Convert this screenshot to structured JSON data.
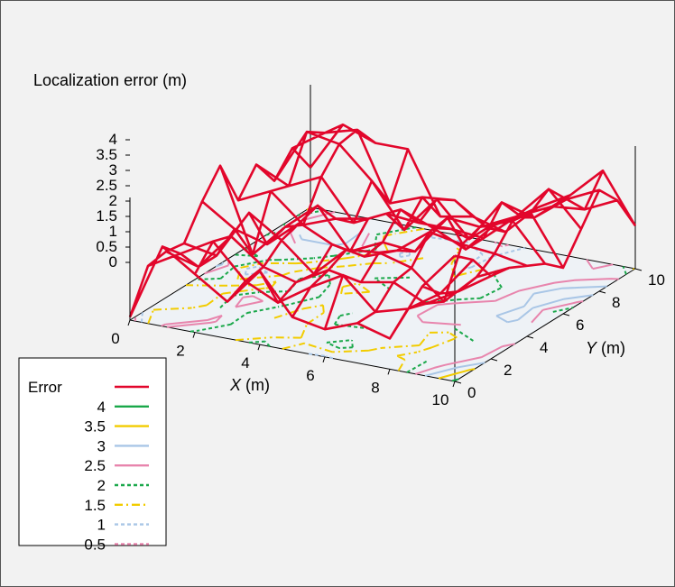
{
  "chart_data": {
    "type": "surface-3d",
    "title": "Localization error (m)",
    "xlabel_italic": "X",
    "xlabel_unit": " (m)",
    "ylabel_italic": "Y",
    "ylabel_unit": " (m)",
    "x_ticks": [
      "0",
      "2",
      "4",
      "6",
      "8",
      "10"
    ],
    "y_ticks": [
      "0",
      "2",
      "4",
      "6",
      "8",
      "10"
    ],
    "z_ticks": [
      "0",
      "0.5",
      "1",
      "1.5",
      "2",
      "2.5",
      "3",
      "3.5",
      "4"
    ],
    "xlim": [
      0,
      10
    ],
    "ylim": [
      0,
      10
    ],
    "zlim": [
      0,
      4
    ],
    "x": [
      0,
      1,
      2,
      3,
      4,
      5,
      6,
      7,
      8,
      9,
      10
    ],
    "y": [
      0,
      1,
      2,
      3,
      4,
      5,
      6,
      7,
      8,
      9,
      10
    ],
    "error_surface": [
      [
        0.1,
        2.6,
        1.9,
        1.2,
        2.4,
        1.1,
        0.9,
        1.3,
        1.0,
        2.9,
        4.1
      ],
      [
        1.4,
        2.0,
        2.6,
        1.5,
        1.0,
        1.7,
        2.3,
        1.3,
        1.6,
        2.3,
        3.6
      ],
      [
        1.5,
        1.2,
        2.4,
        1.6,
        1.3,
        1.9,
        1.7,
        1.9,
        1.4,
        2.0,
        2.7
      ],
      [
        1.4,
        1.2,
        2.8,
        2.1,
        1.2,
        2.2,
        2.3,
        2.0,
        1.1,
        2.1,
        2.6
      ],
      [
        2.4,
        1.7,
        1.4,
        2.3,
        1.8,
        1.6,
        2.0,
        2.8,
        2.6,
        2.5,
        2.3
      ],
      [
        3.2,
        0.5,
        1.6,
        2.5,
        1.2,
        1.7,
        1.6,
        2.9,
        2.8,
        3.2,
        2.0
      ],
      [
        1.7,
        2.2,
        1.3,
        1.7,
        1.9,
        2.4,
        2.0,
        1.5,
        2.6,
        3.1,
        1.5
      ],
      [
        2.5,
        2.0,
        2.5,
        1.2,
        1.7,
        1.6,
        1.6,
        1.5,
        2.4,
        3.5,
        2.4
      ],
      [
        1.6,
        3.4,
        3.2,
        2.2,
        0.8,
        2.0,
        0.9,
        2.3,
        2.0,
        2.8,
        3.3
      ],
      [
        2.3,
        3.0,
        3.3,
        1.1,
        1.5,
        1.6,
        0.9,
        1.5,
        2.0,
        2.1,
        2.6
      ],
      [
        1.3,
        2.9,
        2.5,
        2.5,
        0.5,
        0.7,
        0.4,
        1.4,
        2.0,
        3.0,
        1.4
      ]
    ],
    "contour_levels": [
      4,
      3.5,
      3,
      2.5,
      2,
      1.5,
      1,
      0.5
    ],
    "legend": {
      "placement": "bottom-left",
      "entries": [
        {
          "label": "Error",
          "color": "#e2062b",
          "style": "solid"
        },
        {
          "label": "4",
          "color": "#1aa84a",
          "style": "solid"
        },
        {
          "label": "3.5",
          "color": "#f2cc00",
          "style": "solid"
        },
        {
          "label": "3",
          "color": "#a9c6e6",
          "style": "solid"
        },
        {
          "label": "2.5",
          "color": "#e885ad",
          "style": "solid"
        },
        {
          "label": "2",
          "color": "#1aa84a",
          "style": "dotted"
        },
        {
          "label": "1.5",
          "color": "#f2cc00",
          "style": "dashdot"
        },
        {
          "label": "1",
          "color": "#a9c6e6",
          "style": "dotted"
        },
        {
          "label": "0.5",
          "color": "#e885ad",
          "style": "dotted"
        }
      ]
    }
  }
}
